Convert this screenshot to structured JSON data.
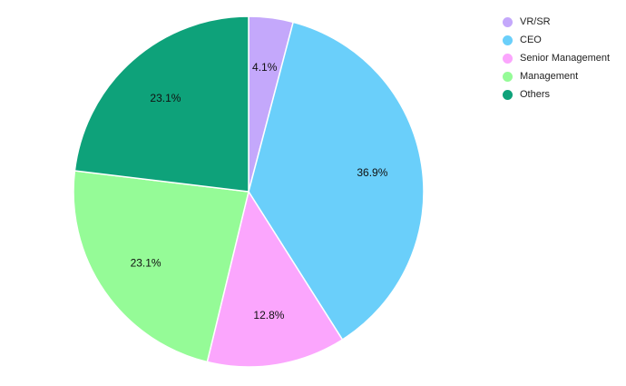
{
  "chart_data": {
    "type": "pie",
    "title": "",
    "slices": [
      {
        "name": "VR/SR",
        "value": 4.1,
        "label": "4.1%",
        "color": "#c4a8fb"
      },
      {
        "name": "CEO",
        "value": 36.9,
        "label": "36.9%",
        "color": "#6acffa"
      },
      {
        "name": "Senior Management",
        "value": 12.8,
        "label": "12.8%",
        "color": "#fba6fd"
      },
      {
        "name": "Management",
        "value": 23.1,
        "label": "23.1%",
        "color": "#95fb97"
      },
      {
        "name": "Others",
        "value": 23.1,
        "label": "23.1%",
        "color": "#0ea27a"
      }
    ],
    "legend_position": "top-right",
    "start_angle": "12 o'clock",
    "direction": "clockwise"
  }
}
